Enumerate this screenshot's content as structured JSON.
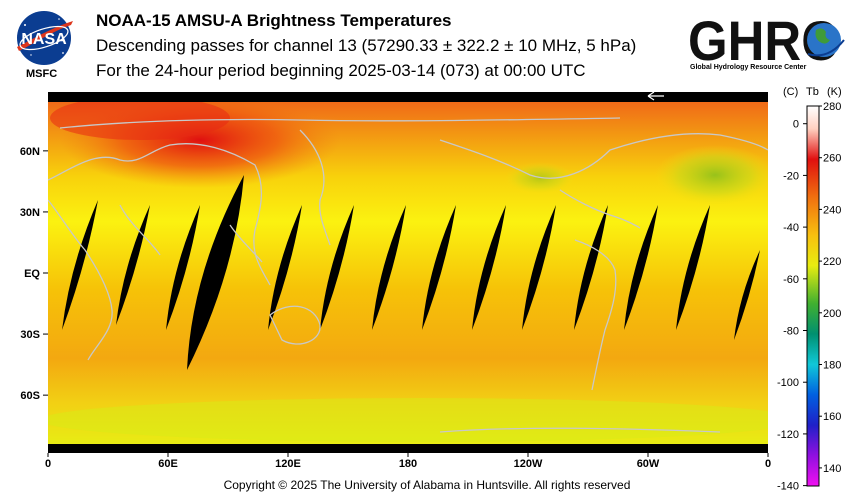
{
  "header": {
    "title": "NOAA-15 AMSU-A Brightness Temperatures",
    "subtitle": "Descending passes for channel 13 (57290.33 ± 322.2 ± 10 MHz, 5 hPa)",
    "period": "For the 24-hour period beginning 2025-03-14 (073) at 00:00 UTC"
  },
  "logos": {
    "nasa_text": "NASA",
    "msfc_text": "MSFC",
    "ghrc_text": "GHRC",
    "ghrc_subtitle": "Global Hydrology Resource Center"
  },
  "map": {
    "lat_labels": [
      {
        "text": "60N",
        "lat": 60
      },
      {
        "text": "30N",
        "lat": 30
      },
      {
        "text": "EQ",
        "lat": 0
      },
      {
        "text": "30S",
        "lat": -30
      },
      {
        "text": "60S",
        "lat": -60
      }
    ],
    "lon_labels": [
      {
        "text": "0",
        "lon": 0
      },
      {
        "text": "60E",
        "lon": 60
      },
      {
        "text": "120E",
        "lon": 120
      },
      {
        "text": "180",
        "lon": 180
      },
      {
        "text": "120W",
        "lon": 240
      },
      {
        "text": "60W",
        "lon": 300
      },
      {
        "text": "0",
        "lon": 360
      }
    ],
    "colors": {
      "background": "#f4c400",
      "land_outline": "#c8c8c8",
      "gap": "#000000"
    }
  },
  "colorbar": {
    "unit_c": "(C)",
    "unit_tb": "Tb",
    "unit_k": "(K)",
    "kelvin_ticks": [
      280,
      260,
      240,
      220,
      200,
      180,
      160,
      140
    ],
    "celsius_ticks": [
      0,
      -20,
      -40,
      -60,
      -80,
      -100,
      -120,
      -140
    ],
    "range_k": [
      133,
      280
    ]
  },
  "footer": {
    "copyright": "Copyright © 2025 The University of Alabama in Huntsville.  All rights reserved"
  }
}
